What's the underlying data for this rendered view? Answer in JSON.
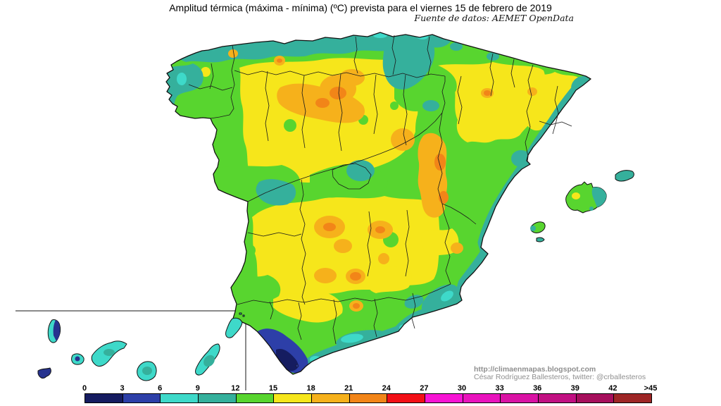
{
  "title": "Amplitud térmica (máxima - mínima) (ºC) prevista para el viernes 15 de febrero de 2019",
  "source": "Fuente de datos: AEMET OpenData",
  "credits": {
    "url": "http://climaenmapas.blogspot.com",
    "author": "César Rodríguez Ballesteros, twitter: @crballesteros"
  },
  "legend": {
    "unit": "ºC",
    "labels": [
      "0",
      "3",
      "6",
      "9",
      "12",
      "15",
      "18",
      "21",
      "24",
      "27",
      "30",
      "33",
      "36",
      "39",
      "42",
      ">45"
    ],
    "colors": [
      "#151c60",
      "#2d3fa8",
      "#3ed9c9",
      "#35b09c",
      "#58d52f",
      "#f6e61b",
      "#f6b11b",
      "#f28518",
      "#f20f16",
      "#f714d4",
      "#e913bd",
      "#d912a4",
      "#c11082",
      "#a60f5c",
      "#9e2626"
    ]
  },
  "map_palette": {
    "green_12_15": "#58d52f",
    "yellow_15_18": "#f6e61b",
    "amber_18_21": "#f6b11b",
    "orange_21_24": "#f28518",
    "teal_9_12": "#35b09c",
    "cyan_6_9": "#3ed9c9",
    "blue_3_6": "#2d3fa8",
    "navy_0_3": "#151c60"
  }
}
